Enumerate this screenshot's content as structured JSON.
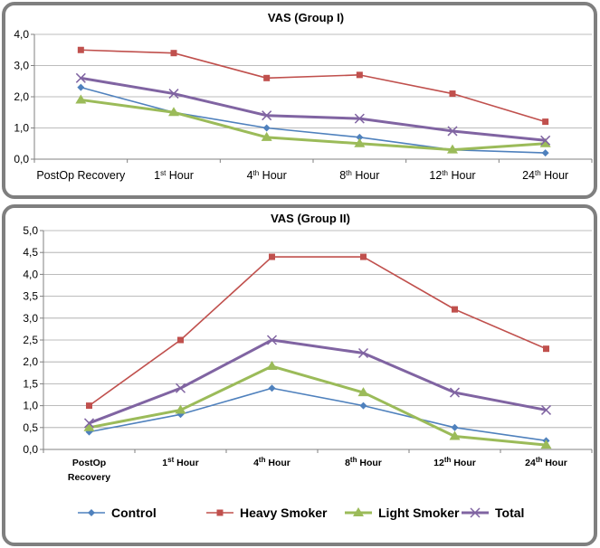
{
  "series_styles": [
    {
      "color": "#4f81bd",
      "marker": "diamond",
      "stroke_width": 1.6
    },
    {
      "color": "#c0504d",
      "marker": "square",
      "stroke_width": 1.6
    },
    {
      "color": "#9bbb59",
      "marker": "triangle",
      "stroke_width": 3
    },
    {
      "color": "#8064a2",
      "marker": "x",
      "stroke_width": 3
    }
  ],
  "legend": [
    "Control",
    "Heavy Smoker",
    "Light Smoker",
    "Total"
  ],
  "chart_data": [
    {
      "type": "line",
      "title": "VAS (Group I)",
      "categories": [
        {
          "base": "PostOp Recovery",
          "sup": ""
        },
        {
          "base": "1",
          "sup": "st",
          "rest": " Hour"
        },
        {
          "base": "4",
          "sup": "th",
          "rest": " Hour"
        },
        {
          "base": "8",
          "sup": "th",
          "rest": " Hour"
        },
        {
          "base": "12",
          "sup": "th",
          "rest": " Hour"
        },
        {
          "base": "24",
          "sup": "th",
          "rest": " Hour"
        }
      ],
      "ylim": [
        0,
        4
      ],
      "yticks": [
        "0,0",
        "1,0",
        "2,0",
        "3,0",
        "4,0"
      ],
      "series": [
        {
          "name": "Control",
          "values": [
            2.3,
            1.5,
            1.0,
            0.7,
            0.3,
            0.2
          ]
        },
        {
          "name": "Heavy Smoker",
          "values": [
            3.5,
            3.4,
            2.6,
            2.7,
            2.1,
            1.2
          ]
        },
        {
          "name": "Light Smoker",
          "values": [
            1.9,
            1.5,
            0.7,
            0.5,
            0.3,
            0.5
          ]
        },
        {
          "name": "Total",
          "values": [
            2.6,
            2.1,
            1.4,
            1.3,
            0.9,
            0.6
          ]
        }
      ],
      "grid": true,
      "legend_position": "none"
    },
    {
      "type": "line",
      "title": "VAS (Group II)",
      "categories": [
        {
          "base": "PostOp",
          "line2": "Recovery"
        },
        {
          "base": "1",
          "sup": "st",
          "rest": " Hour"
        },
        {
          "base": "4",
          "sup": "th",
          "rest": " Hour"
        },
        {
          "base": "8",
          "sup": "th",
          "rest": " Hour"
        },
        {
          "base": "12",
          "sup": "th",
          "rest": " Hour"
        },
        {
          "base": "24",
          "sup": "th",
          "rest": " Hour"
        }
      ],
      "ylim": [
        0,
        5
      ],
      "yticks": [
        "0,0",
        "0,5",
        "1,0",
        "1,5",
        "2,0",
        "2,5",
        "3,0",
        "3,5",
        "4,0",
        "4,5",
        "5,0"
      ],
      "series": [
        {
          "name": "Control",
          "values": [
            0.4,
            0.8,
            1.4,
            1.0,
            0.5,
            0.2
          ]
        },
        {
          "name": "Heavy Smoker",
          "values": [
            1.0,
            2.5,
            4.4,
            4.4,
            3.2,
            2.3
          ]
        },
        {
          "name": "Light Smoker",
          "values": [
            0.5,
            0.9,
            1.9,
            1.3,
            0.3,
            0.1
          ]
        },
        {
          "name": "Total",
          "values": [
            0.6,
            1.4,
            2.5,
            2.2,
            1.3,
            0.9
          ]
        }
      ],
      "grid": true,
      "legend_position": "bottom"
    }
  ]
}
